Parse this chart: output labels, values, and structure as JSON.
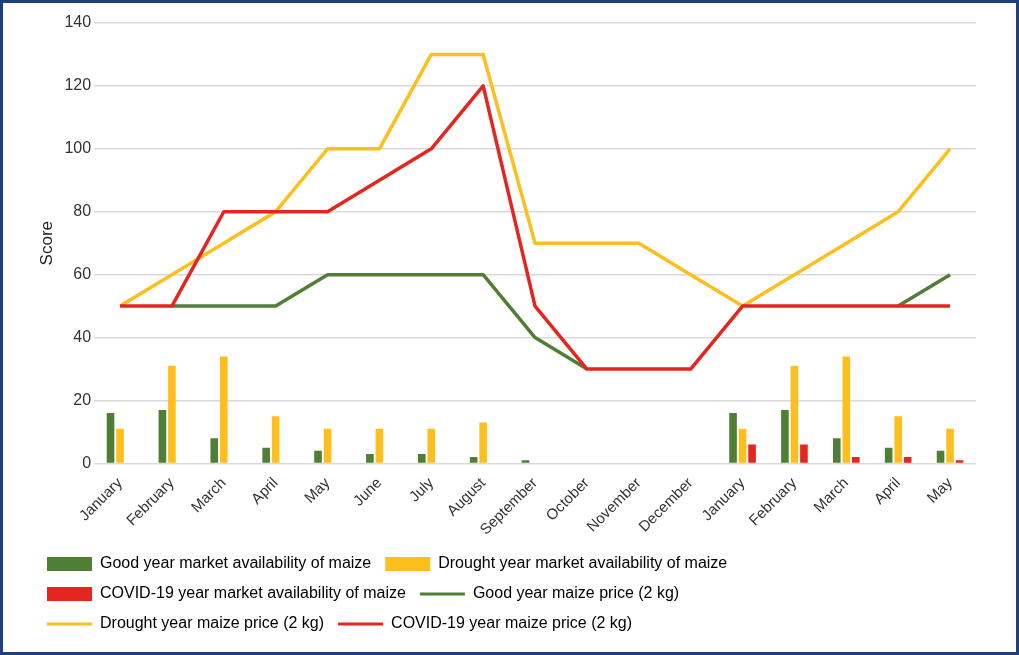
{
  "chart_data": {
    "type": "bar",
    "ylabel": "Score",
    "categories": [
      "January",
      "February",
      "March",
      "April",
      "May",
      "June",
      "July",
      "August",
      "September",
      "October",
      "November",
      "December",
      "January",
      "February",
      "March",
      "April",
      "May"
    ],
    "series": [
      {
        "name": "Good year market availability of maize",
        "color": "#4e7f34",
        "values": [
          16,
          17,
          8,
          5,
          4,
          3,
          3,
          2,
          1,
          0,
          0,
          0,
          16,
          17,
          8,
          5,
          4
        ]
      },
      {
        "name": "Drought year market availability of maize",
        "color": "#fdbf1e",
        "values": [
          11,
          31,
          34,
          15,
          11,
          11,
          11,
          13,
          null,
          null,
          null,
          null,
          11,
          31,
          34,
          15,
          11
        ]
      },
      {
        "name": "COVID-19 year market availability of maize",
        "color": "#e5251f",
        "values": [
          null,
          null,
          null,
          null,
          null,
          null,
          null,
          null,
          null,
          null,
          null,
          null,
          6,
          6,
          2,
          2,
          1
        ]
      },
      {
        "name": "Good year maize price (2 kg)",
        "type": "line",
        "color": "#4e7f34",
        "values": [
          null,
          50,
          50,
          50,
          60,
          60,
          60,
          60,
          40,
          30,
          null,
          null,
          null,
          null,
          null,
          50,
          60
        ]
      },
      {
        "name": "Drought year maize price (2 kg)",
        "type": "line",
        "color": "#fdbf1e",
        "values": [
          50,
          60,
          70,
          80,
          100,
          100,
          130,
          130,
          70,
          70,
          70,
          60,
          50,
          60,
          70,
          80,
          100
        ]
      },
      {
        "name": "COVID-19 year maize price (2 kg)",
        "type": "line",
        "color": "#e5251f",
        "values": [
          50,
          50,
          80,
          80,
          80,
          90,
          100,
          120,
          50,
          30,
          30,
          30,
          50,
          50,
          50,
          50,
          50
        ]
      }
    ],
    "ylim": [
      0,
      140
    ],
    "yticks": [
      0,
      20,
      40,
      60,
      80,
      100,
      120,
      140
    ],
    "grid": "y",
    "legend": "bottom",
    "marker": "none",
    "line_style": "solid"
  }
}
